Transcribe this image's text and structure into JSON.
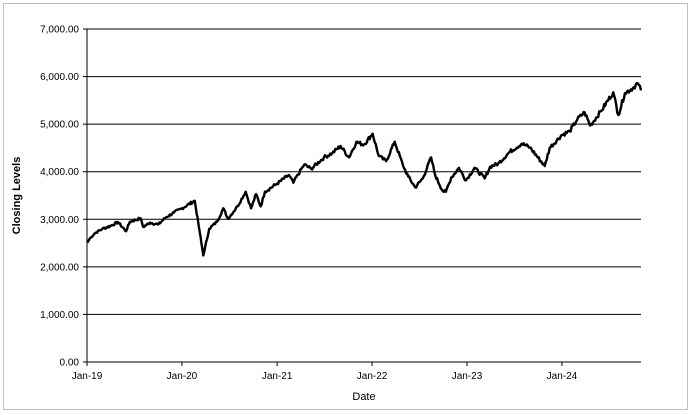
{
  "chart_data": {
    "type": "line",
    "title": "",
    "xlabel": "Date",
    "ylabel": "Closing Levels",
    "ylim": [
      0,
      7000
    ],
    "y_ticks": [
      "0.00",
      "1,000.00",
      "2,000.00",
      "3,000.00",
      "4,000.00",
      "5,000.00",
      "6,000.00",
      "7,000.00"
    ],
    "y_tick_values": [
      0,
      1000,
      2000,
      3000,
      4000,
      5000,
      6000,
      7000
    ],
    "x_ticks": [
      "Jan-19",
      "Jan-20",
      "Jan-21",
      "Jan-22",
      "Jan-23",
      "Jan-24"
    ],
    "x_tick_dates": [
      "2019-01-01",
      "2020-01-01",
      "2021-01-01",
      "2022-01-01",
      "2023-01-01",
      "2024-01-01"
    ],
    "xlim": [
      "2019-01-01",
      "2024-10-31"
    ],
    "grid": "horizontal",
    "legend": "none",
    "line_color": "#000000",
    "series": [
      {
        "x": [
          "2019-01-02",
          "2019-01-15",
          "2019-02-01",
          "2019-03-01",
          "2019-04-01",
          "2019-04-30",
          "2019-05-31",
          "2019-06-15",
          "2019-07-26",
          "2019-08-05",
          "2019-09-01",
          "2019-10-02",
          "2019-10-31",
          "2019-12-01",
          "2020-01-01",
          "2020-02-19",
          "2020-03-09",
          "2020-03-23",
          "2020-04-15",
          "2020-05-15",
          "2020-06-08",
          "2020-06-26",
          "2020-08-01",
          "2020-09-02",
          "2020-09-23",
          "2020-10-12",
          "2020-10-30",
          "2020-11-15",
          "2021-01-01",
          "2021-02-15",
          "2021-03-04",
          "2021-04-15",
          "2021-05-12",
          "2021-06-30",
          "2021-08-01",
          "2021-09-02",
          "2021-10-04",
          "2021-11-01",
          "2021-12-01",
          "2022-01-03",
          "2022-01-27",
          "2022-02-24",
          "2022-03-29",
          "2022-04-30",
          "2022-05-20",
          "2022-06-16",
          "2022-07-15",
          "2022-08-16",
          "2022-09-01",
          "2022-09-30",
          "2022-10-12",
          "2022-11-01",
          "2022-12-01",
          "2022-12-28",
          "2023-01-30",
          "2023-03-10",
          "2023-04-01",
          "2023-05-01",
          "2023-06-15",
          "2023-07-31",
          "2023-08-31",
          "2023-10-27",
          "2023-11-15",
          "2023-12-31",
          "2024-01-31",
          "2024-02-29",
          "2024-03-28",
          "2024-04-19",
          "2024-05-31",
          "2024-07-16",
          "2024-08-05",
          "2024-08-30",
          "2024-09-30",
          "2024-10-18",
          "2024-10-31"
        ],
        "y": [
          2510,
          2620,
          2710,
          2800,
          2860,
          2940,
          2750,
          2950,
          3020,
          2840,
          2930,
          2890,
          3040,
          3140,
          3230,
          3390,
          2750,
          2240,
          2800,
          2950,
          3230,
          3010,
          3270,
          3580,
          3230,
          3530,
          3270,
          3580,
          3750,
          3930,
          3770,
          4150,
          4060,
          4300,
          4390,
          4540,
          4300,
          4620,
          4570,
          4800,
          4330,
          4220,
          4630,
          4130,
          3900,
          3670,
          3860,
          4300,
          3920,
          3590,
          3580,
          3870,
          4080,
          3820,
          4080,
          3860,
          4110,
          4170,
          4420,
          4590,
          4510,
          4120,
          4500,
          4770,
          4850,
          5100,
          5250,
          4970,
          5280,
          5670,
          5190,
          5650,
          5760,
          5860,
          5710
        ]
      }
    ]
  }
}
